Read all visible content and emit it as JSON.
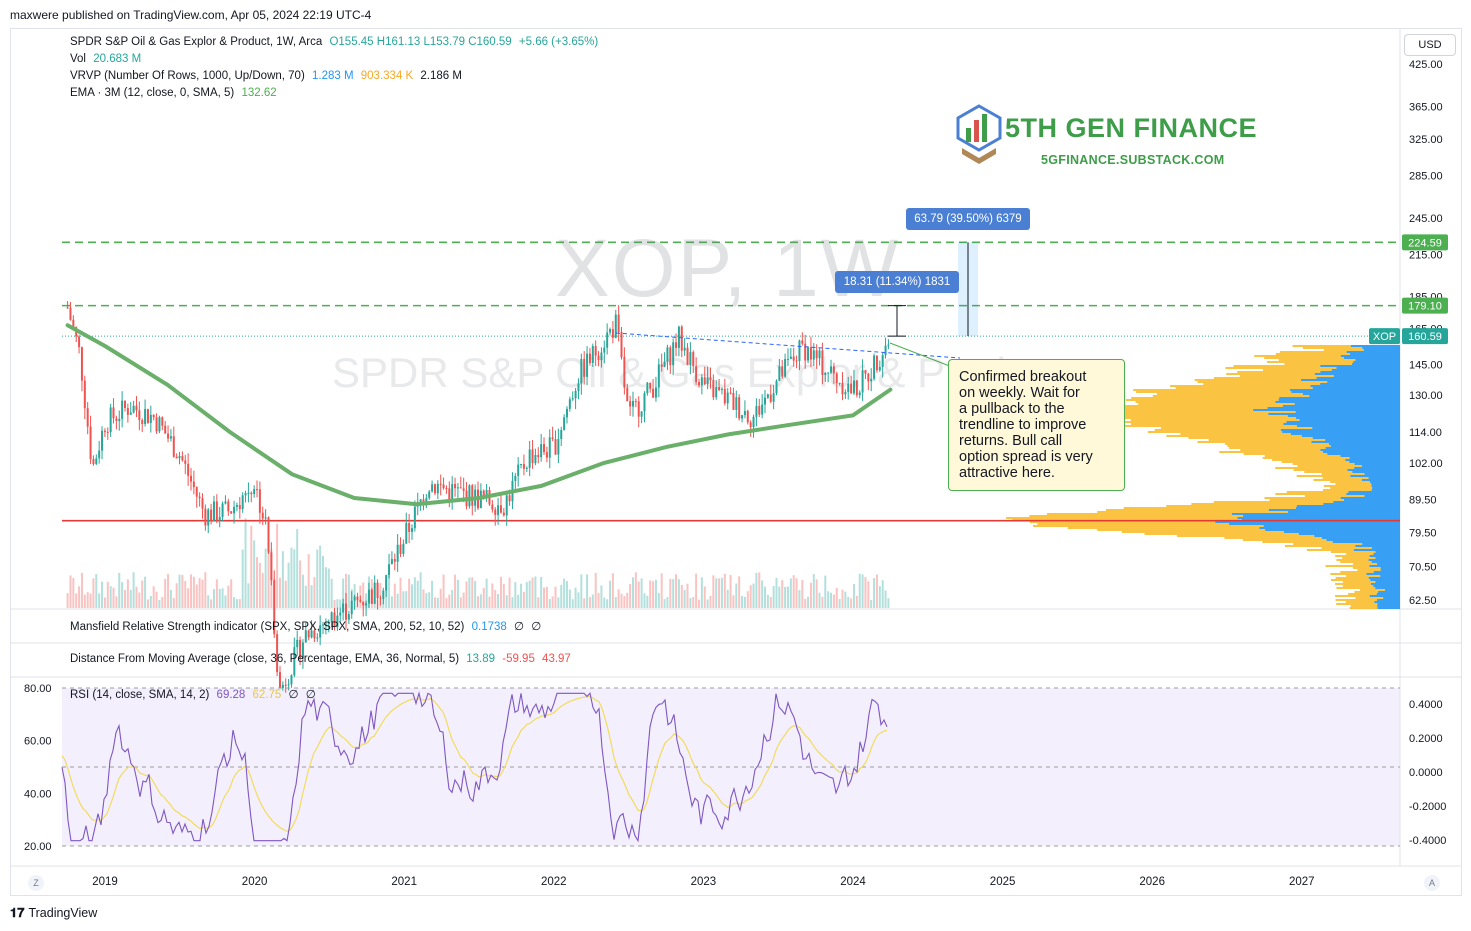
{
  "header": {
    "published": "maxwere published on TradingView.com, Apr 05, 2024 22:19 UTC-4",
    "currency_button": "USD"
  },
  "watermark": {
    "symbol": "XOP, 1W",
    "name": "SPDR S&P Oil & Gas Explor & Product"
  },
  "legend": {
    "main": {
      "title": "SPDR S&P Oil & Gas Explor & Product, 1W, Arca",
      "ohlc": "O155.45  H161.13  L153.79  C160.59",
      "change": "+5.66 (+3.65%)"
    },
    "vol": {
      "label": "Vol",
      "value": "20.683 M"
    },
    "vrvp": {
      "label": "VRVP (Number Of Rows, 1000, Up/Down, 70)",
      "up": "1.283 M",
      "down": "903.334 K",
      "total": "2.186 M"
    },
    "ema": {
      "label": "EMA · 3M (12, close, 0, SMA, 5)",
      "value": "132.62"
    },
    "mansfield": {
      "label": "Mansfield Relative Strength indicator (SPX, SPX, SPX, SMA, 200, 52, 10, 52)",
      "value": "0.1738",
      "v2": "∅",
      "v3": "∅"
    },
    "dma": {
      "label": "Distance From Moving Average (close, 36, Percentage, EMA, 36, Normal, 5)",
      "v1": "13.89",
      "v2": "-59.95",
      "v3": "43.97"
    },
    "rsi": {
      "label": "RSI (14, close, SMA, 14, 2)",
      "v1": "69.28",
      "v2": "62.75",
      "v3": "∅",
      "v4": "∅"
    }
  },
  "logo": {
    "title": "5TH GEN FINANCE",
    "subtitle": "5GFINANCE.SUBSTACK.COM"
  },
  "annotation": {
    "text": "Confirmed breakout\non weekly.  Wait for\na pullback to the\ntrendline to improve\nreturns.  Bull call\noption spread is very\nattractive here."
  },
  "measures": [
    {
      "label": "18.31 (11.34%) 1831"
    },
    {
      "label": "63.79 (39.50%) 6379"
    }
  ],
  "price_labels": {
    "level_upper": "224.59",
    "level_lower": "179.10",
    "symbol_tag": "XOP",
    "last": "160.59"
  },
  "footer": {
    "brand": "TradingView"
  },
  "buttons": {
    "z": "Z",
    "a": "A"
  },
  "chart_data": {
    "type": "candlestick",
    "symbol": "XOP",
    "timeframe": "1W",
    "price_axis_ticks": [
      "425.00",
      "365.00",
      "325.00",
      "285.00",
      "245.00",
      "215.00",
      "185.00",
      "165.00",
      "145.00",
      "130.00",
      "114.00",
      "102.00",
      "89.50",
      "79.50",
      "70.50",
      "62.50"
    ],
    "price_axis_log": true,
    "time_axis": [
      "2019",
      "2020",
      "2021",
      "2022",
      "2023",
      "2024",
      "2025",
      "2026",
      "2027"
    ],
    "rsi_axis": [
      "80.00",
      "60.00",
      "40.00",
      "20.00"
    ],
    "osc_axis": [
      "0.4000",
      "0.2000",
      "0.0000",
      "-0.2000",
      "-0.4000"
    ],
    "horizontal_levels": [
      224.59,
      179.1,
      83.0
    ],
    "last_close": 160.59,
    "colors": {
      "up": "#26a69a",
      "down": "#ef5350",
      "ema": "#6aaf6a",
      "level": "#4caf50",
      "support": "#e53935",
      "rsi": "#7e57c2",
      "rsi_ma": "#f2dc5d",
      "vp_up": "#2196f3",
      "vp_down": "#f9b820"
    },
    "price_series": [
      [
        "2018-10",
        178
      ],
      [
        "2018-11",
        150
      ],
      [
        "2018-12",
        100
      ],
      [
        "2019-01",
        118
      ],
      [
        "2019-03",
        125
      ],
      [
        "2019-05",
        120
      ],
      [
        "2019-07",
        105
      ],
      [
        "2019-09",
        85
      ],
      [
        "2019-11",
        86
      ],
      [
        "2020-01",
        95
      ],
      [
        "2020-02",
        80
      ],
      [
        "2020-03",
        45
      ],
      [
        "2020-05",
        55
      ],
      [
        "2020-08",
        60
      ],
      [
        "2020-11",
        65
      ],
      [
        "2021-01",
        78
      ],
      [
        "2021-03",
        95
      ],
      [
        "2021-05",
        92
      ],
      [
        "2021-07",
        90
      ],
      [
        "2021-09",
        88
      ],
      [
        "2021-11",
        105
      ],
      [
        "2022-01",
        108
      ],
      [
        "2022-03",
        140
      ],
      [
        "2022-06",
        168
      ],
      [
        "2022-07",
        120
      ],
      [
        "2022-09",
        135
      ],
      [
        "2022-11",
        160
      ],
      [
        "2023-01",
        135
      ],
      [
        "2023-03",
        128
      ],
      [
        "2023-05",
        120
      ],
      [
        "2023-07",
        138
      ],
      [
        "2023-09",
        155
      ],
      [
        "2023-11",
        142
      ],
      [
        "2024-01",
        132
      ],
      [
        "2024-02",
        138
      ],
      [
        "2024-04",
        160.59
      ]
    ],
    "ema_series": [
      [
        "2018-10",
        167
      ],
      [
        "2019-01",
        155
      ],
      [
        "2019-06",
        135
      ],
      [
        "2019-11",
        114
      ],
      [
        "2020-04",
        98
      ],
      [
        "2020-09",
        90
      ],
      [
        "2021-02",
        88
      ],
      [
        "2021-07",
        90
      ],
      [
        "2021-12",
        94
      ],
      [
        "2022-05",
        102
      ],
      [
        "2022-10",
        108
      ],
      [
        "2023-03",
        113
      ],
      [
        "2023-08",
        117
      ],
      [
        "2024-01",
        121
      ],
      [
        "2024-04",
        132.62
      ]
    ]
  }
}
